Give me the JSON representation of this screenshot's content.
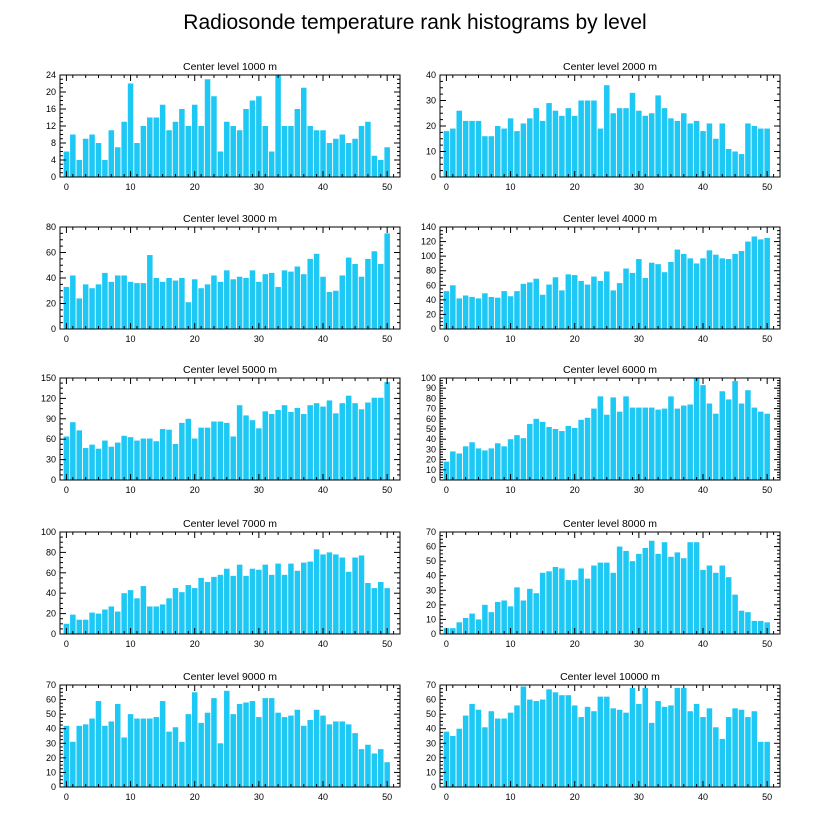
{
  "title": "Radiosonde temperature rank histograms by level",
  "colors": {
    "bar": "#1ec8f5",
    "axis": "#000000",
    "background": "#ffffff"
  },
  "chart_data": [
    {
      "type": "bar",
      "title": "Center level 1000 m",
      "xlim": [
        -1,
        52
      ],
      "ylim": [
        0,
        24
      ],
      "xticks": [
        0,
        10,
        20,
        30,
        40,
        50
      ],
      "yticks": [
        0,
        4,
        8,
        12,
        16,
        20,
        24
      ],
      "values": [
        6,
        10,
        4,
        9,
        10,
        8,
        4,
        11,
        7,
        13,
        22,
        8,
        12,
        14,
        14,
        17,
        11,
        13,
        16,
        12,
        17,
        12,
        23,
        19,
        6,
        13,
        12,
        11,
        16,
        18,
        19,
        12,
        6,
        24,
        12,
        12,
        16,
        21,
        12,
        11,
        11,
        8,
        9,
        10,
        8,
        9,
        12,
        13,
        5,
        4,
        7
      ]
    },
    {
      "type": "bar",
      "title": "Center level 2000 m",
      "xlim": [
        -1,
        52
      ],
      "ylim": [
        0,
        40
      ],
      "xticks": [
        0,
        10,
        20,
        30,
        40,
        50
      ],
      "yticks": [
        0,
        10,
        20,
        30,
        40
      ],
      "values": [
        18,
        19,
        26,
        22,
        22,
        22,
        16,
        16,
        20,
        19,
        23,
        18,
        21,
        23,
        27,
        22,
        29,
        26,
        24,
        27,
        24,
        30,
        30,
        30,
        19,
        36,
        25,
        27,
        27,
        33,
        26,
        24,
        25,
        32,
        27,
        23,
        22,
        25,
        21,
        22,
        18,
        21,
        15,
        21,
        11,
        10,
        9,
        21,
        20,
        19,
        19
      ]
    },
    {
      "type": "bar",
      "title": "Center level 3000 m",
      "xlim": [
        -1,
        52
      ],
      "ylim": [
        0,
        80
      ],
      "xticks": [
        0,
        10,
        20,
        30,
        40,
        50
      ],
      "yticks": [
        0,
        20,
        40,
        60,
        80
      ],
      "values": [
        33,
        42,
        24,
        35,
        32,
        35,
        44,
        37,
        42,
        42,
        37,
        36,
        36,
        58,
        40,
        37,
        40,
        38,
        40,
        21,
        39,
        32,
        35,
        42,
        37,
        46,
        39,
        41,
        40,
        46,
        37,
        43,
        44,
        33,
        46,
        45,
        49,
        43,
        55,
        59,
        41,
        29,
        30,
        42,
        56,
        51,
        41,
        55,
        61,
        51,
        75
      ]
    },
    {
      "type": "bar",
      "title": "Center level 4000 m",
      "xlim": [
        -1,
        52
      ],
      "ylim": [
        0,
        140
      ],
      "xticks": [
        0,
        10,
        20,
        30,
        40,
        50
      ],
      "yticks": [
        0,
        20,
        40,
        60,
        80,
        100,
        120,
        140
      ],
      "values": [
        52,
        60,
        42,
        46,
        44,
        42,
        49,
        44,
        43,
        52,
        45,
        52,
        62,
        64,
        69,
        47,
        61,
        71,
        53,
        75,
        74,
        66,
        61,
        72,
        66,
        79,
        53,
        63,
        83,
        77,
        96,
        70,
        91,
        89,
        78,
        92,
        109,
        103,
        97,
        90,
        97,
        108,
        102,
        97,
        96,
        103,
        107,
        120,
        127,
        123,
        125
      ]
    },
    {
      "type": "bar",
      "title": "Center level 5000 m",
      "xlim": [
        -1,
        52
      ],
      "ylim": [
        0,
        150
      ],
      "xticks": [
        0,
        10,
        20,
        30,
        40,
        50
      ],
      "yticks": [
        0,
        30,
        60,
        90,
        120,
        150
      ],
      "values": [
        64,
        85,
        73,
        47,
        52,
        46,
        58,
        49,
        55,
        65,
        63,
        58,
        61,
        61,
        57,
        75,
        74,
        53,
        84,
        90,
        61,
        77,
        77,
        86,
        86,
        84,
        64,
        110,
        95,
        88,
        76,
        101,
        97,
        103,
        110,
        100,
        106,
        97,
        110,
        113,
        108,
        117,
        98,
        113,
        124,
        113,
        104,
        114,
        121,
        121,
        144
      ]
    },
    {
      "type": "bar",
      "title": "Center level 6000 m",
      "xlim": [
        -1,
        52
      ],
      "ylim": [
        0,
        100
      ],
      "xticks": [
        0,
        10,
        20,
        30,
        40,
        50
      ],
      "yticks": [
        0,
        10,
        20,
        30,
        40,
        50,
        60,
        70,
        80,
        90,
        100
      ],
      "values": [
        18,
        28,
        26,
        33,
        37,
        31,
        29,
        31,
        36,
        33,
        40,
        44,
        41,
        55,
        60,
        57,
        52,
        50,
        48,
        53,
        51,
        59,
        61,
        70,
        82,
        64,
        81,
        67,
        82,
        71,
        71,
        71,
        71,
        69,
        70,
        82,
        70,
        73,
        74,
        100,
        93,
        75,
        65,
        87,
        79,
        97,
        75,
        88,
        71,
        67,
        65
      ]
    },
    {
      "type": "bar",
      "title": "Center level 7000 m",
      "xlim": [
        -1,
        52
      ],
      "ylim": [
        0,
        100
      ],
      "xticks": [
        0,
        10,
        20,
        30,
        40,
        50
      ],
      "yticks": [
        0,
        20,
        40,
        60,
        80,
        100
      ],
      "values": [
        10,
        19,
        14,
        14,
        21,
        20,
        24,
        27,
        22,
        40,
        43,
        35,
        47,
        27,
        27,
        29,
        35,
        45,
        41,
        48,
        45,
        55,
        51,
        56,
        58,
        64,
        57,
        68,
        57,
        64,
        63,
        68,
        58,
        69,
        58,
        69,
        62,
        70,
        71,
        83,
        78,
        80,
        78,
        75,
        61,
        75,
        77,
        50,
        45,
        51,
        45
      ]
    },
    {
      "type": "bar",
      "title": "Center level 8000 m",
      "xlim": [
        -1,
        52
      ],
      "ylim": [
        0,
        70
      ],
      "xticks": [
        0,
        10,
        20,
        30,
        40,
        50
      ],
      "yticks": [
        0,
        10,
        20,
        30,
        40,
        50,
        60,
        70
      ],
      "values": [
        4,
        4,
        8,
        11,
        14,
        10,
        20,
        15,
        22,
        23,
        19,
        32,
        23,
        31,
        28,
        42,
        43,
        46,
        45,
        37,
        37,
        45,
        38,
        47,
        49,
        49,
        42,
        60,
        57,
        50,
        55,
        59,
        64,
        55,
        63,
        53,
        56,
        52,
        63,
        63,
        44,
        47,
        42,
        47,
        39,
        27,
        16,
        15,
        9,
        9,
        8
      ]
    },
    {
      "type": "bar",
      "title": "Center level 9000 m",
      "xlim": [
        -1,
        52
      ],
      "ylim": [
        0,
        70
      ],
      "xticks": [
        0,
        10,
        20,
        30,
        40,
        50
      ],
      "yticks": [
        0,
        10,
        20,
        30,
        40,
        50,
        60,
        70
      ],
      "values": [
        42,
        31,
        42,
        43,
        47,
        59,
        42,
        45,
        57,
        34,
        50,
        47,
        47,
        47,
        48,
        59,
        38,
        41,
        31,
        50,
        65,
        44,
        51,
        61,
        30,
        66,
        50,
        57,
        58,
        59,
        48,
        61,
        61,
        51,
        48,
        49,
        53,
        42,
        46,
        53,
        49,
        43,
        45,
        45,
        43,
        37,
        26,
        29,
        23,
        26,
        17
      ]
    },
    {
      "type": "bar",
      "title": "Center level 10000 m",
      "xlim": [
        -1,
        52
      ],
      "ylim": [
        0,
        70
      ],
      "xticks": [
        0,
        10,
        20,
        30,
        40,
        50
      ],
      "yticks": [
        0,
        10,
        20,
        30,
        40,
        50,
        60,
        70
      ],
      "values": [
        38,
        35,
        40,
        49,
        57,
        53,
        41,
        52,
        47,
        47,
        51,
        56,
        69,
        60,
        59,
        60,
        67,
        65,
        63,
        63,
        56,
        48,
        55,
        52,
        62,
        62,
        54,
        53,
        51,
        68,
        57,
        68,
        44,
        59,
        55,
        56,
        68,
        68,
        52,
        57,
        48,
        54,
        41,
        33,
        48,
        54,
        53,
        48,
        52,
        31,
        31
      ]
    }
  ]
}
